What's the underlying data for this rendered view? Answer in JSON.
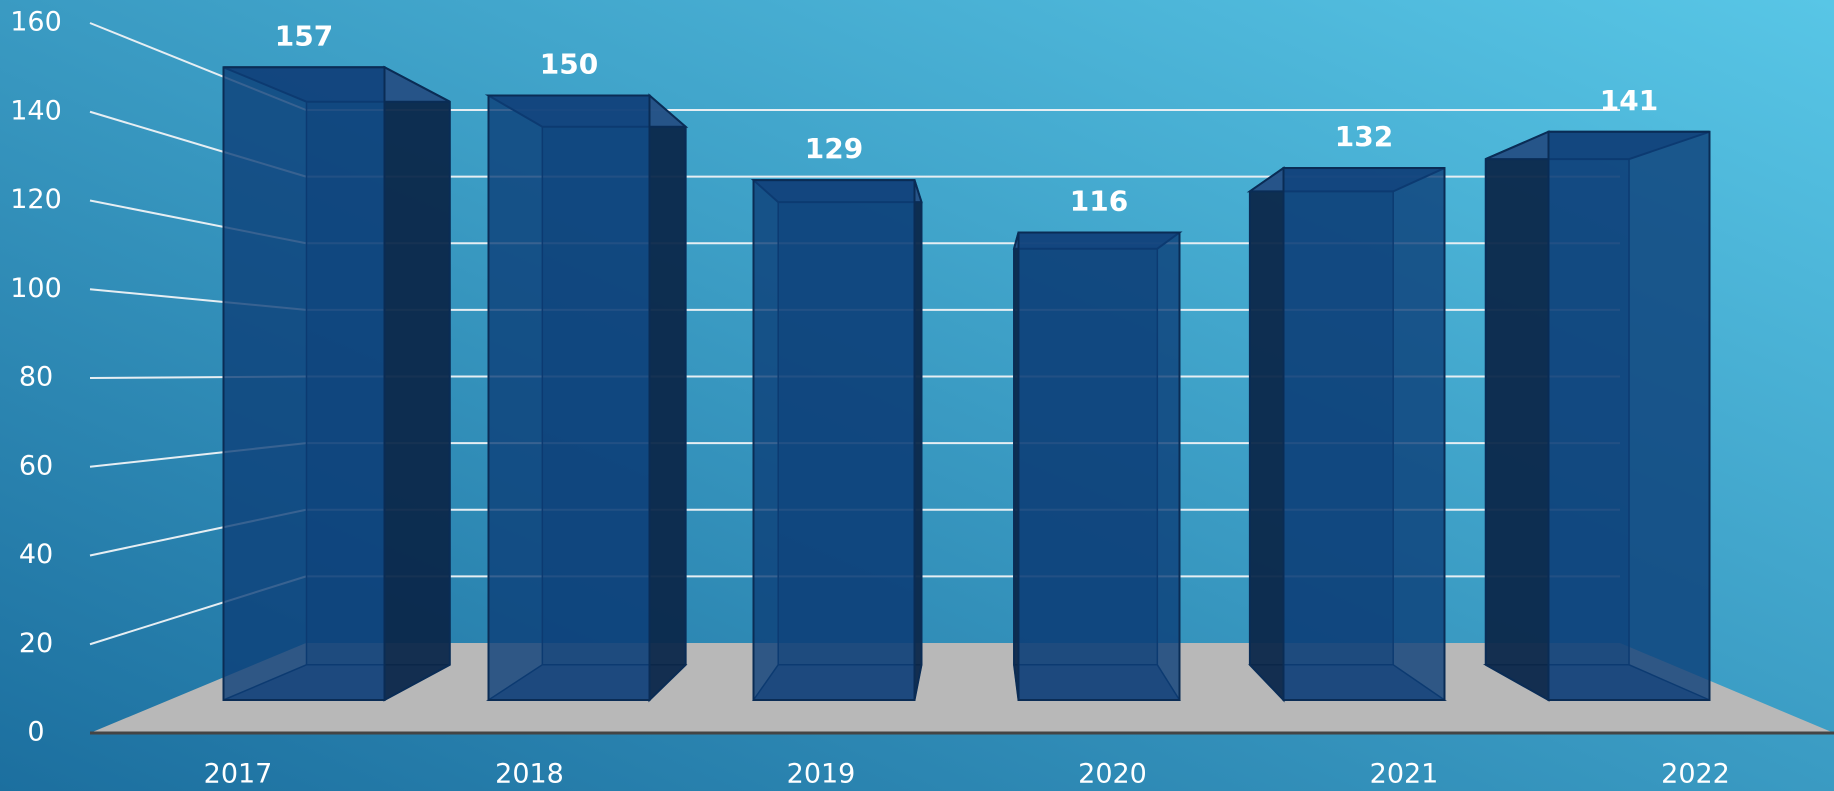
{
  "chart_data": {
    "type": "bar",
    "categories": [
      "2017",
      "2018",
      "2019",
      "2020",
      "2021",
      "2022"
    ],
    "values": [
      157,
      150,
      129,
      116,
      132,
      141
    ],
    "color": "#0d3f78",
    "ylim": [
      0,
      160
    ],
    "yticks": [
      0,
      20,
      40,
      60,
      80,
      100,
      120,
      140,
      160
    ],
    "grid": true
  }
}
